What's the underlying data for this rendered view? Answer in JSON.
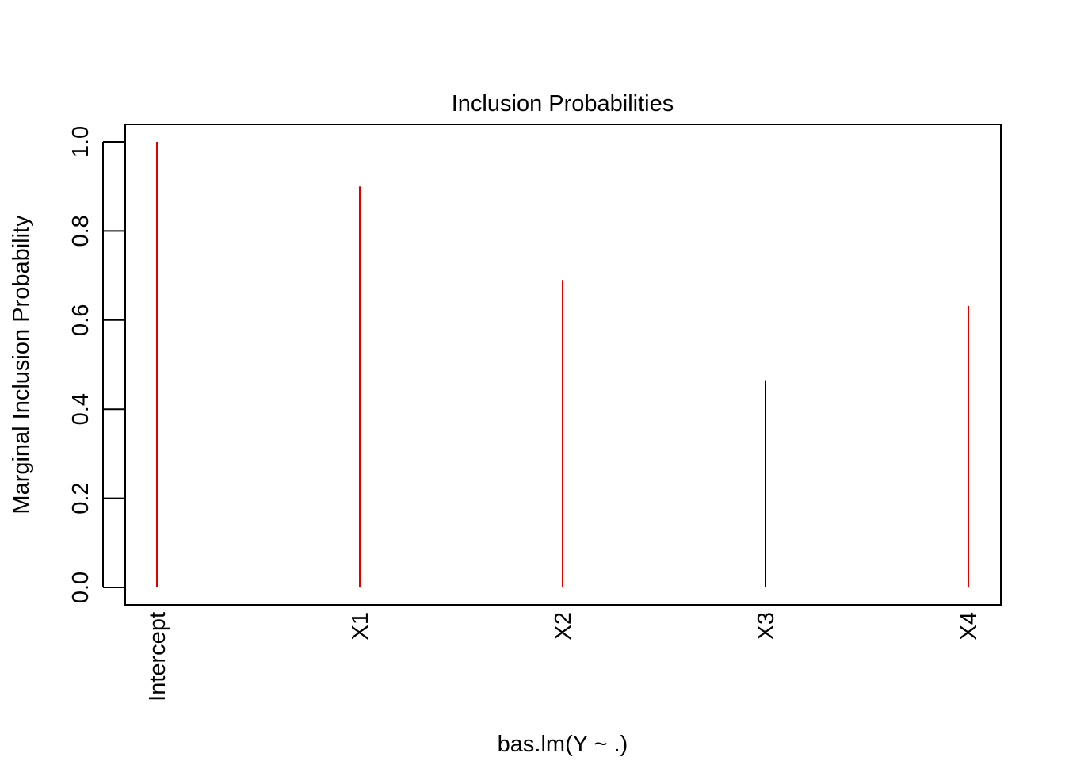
{
  "chart_data": {
    "type": "bar",
    "title": "Inclusion Probabilities",
    "xlabel": "bas.lm(Y ~ .)",
    "ylabel": "Marginal Inclusion Probability",
    "categories": [
      "Intercept",
      "X1",
      "X2",
      "X3",
      "X4"
    ],
    "values": [
      1.0,
      0.9,
      0.69,
      0.465,
      0.632
    ],
    "ylim": [
      0,
      1
    ],
    "yticks": [
      0.0,
      0.2,
      0.4,
      0.6,
      0.8,
      1.0
    ],
    "ytick_labels": [
      "0.0",
      "0.2",
      "0.4",
      "0.6",
      "0.8",
      "1.0"
    ],
    "grid": false,
    "colors": {
      "included": "#DF0000",
      "excluded": "#000000"
    },
    "included": [
      true,
      true,
      true,
      false,
      true
    ]
  }
}
